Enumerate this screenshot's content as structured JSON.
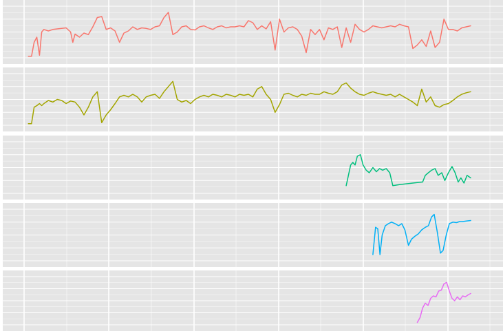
{
  "chart_data": {
    "type": "line",
    "title": "",
    "xlabel": "",
    "ylabel": "",
    "facet_layout": "stacked-vertical",
    "x_range": [
      0,
      100
    ],
    "grid": true,
    "legend": "none",
    "panel_background": "#e5e5e5",
    "grid_color": "#ffffff",
    "series": [
      {
        "color": "#f8766d",
        "ylim": [
          0,
          100
        ],
        "points": [
          [
            0.5,
            3
          ],
          [
            1.2,
            3
          ],
          [
            1.8,
            30
          ],
          [
            2.4,
            40
          ],
          [
            3,
            5
          ],
          [
            3.5,
            50
          ],
          [
            4,
            55
          ],
          [
            5,
            52
          ],
          [
            6,
            55
          ],
          [
            7,
            56
          ],
          [
            8,
            57
          ],
          [
            9,
            58
          ],
          [
            10,
            50
          ],
          [
            10.5,
            30
          ],
          [
            11,
            46
          ],
          [
            12,
            40
          ],
          [
            13,
            48
          ],
          [
            14,
            45
          ],
          [
            15,
            60
          ],
          [
            16,
            78
          ],
          [
            17,
            80
          ],
          [
            18,
            55
          ],
          [
            19,
            58
          ],
          [
            20,
            52
          ],
          [
            21,
            30
          ],
          [
            22,
            48
          ],
          [
            23,
            52
          ],
          [
            24,
            60
          ],
          [
            25,
            55
          ],
          [
            26,
            58
          ],
          [
            27,
            57
          ],
          [
            28,
            55
          ],
          [
            29,
            60
          ],
          [
            30,
            62
          ],
          [
            31,
            78
          ],
          [
            32,
            88
          ],
          [
            33,
            45
          ],
          [
            34,
            50
          ],
          [
            35,
            60
          ],
          [
            36,
            62
          ],
          [
            37,
            55
          ],
          [
            38,
            54
          ],
          [
            39,
            60
          ],
          [
            40,
            62
          ],
          [
            41,
            58
          ],
          [
            42,
            55
          ],
          [
            43,
            60
          ],
          [
            44,
            62
          ],
          [
            45,
            58
          ],
          [
            46,
            60
          ],
          [
            47,
            60
          ],
          [
            48,
            62
          ],
          [
            49,
            60
          ],
          [
            50,
            72
          ],
          [
            51,
            68
          ],
          [
            52,
            55
          ],
          [
            53,
            62
          ],
          [
            54,
            56
          ],
          [
            55,
            70
          ],
          [
            56,
            15
          ],
          [
            57,
            75
          ],
          [
            58,
            50
          ],
          [
            59,
            58
          ],
          [
            60,
            60
          ],
          [
            61,
            55
          ],
          [
            62,
            42
          ],
          [
            63,
            10
          ],
          [
            64,
            55
          ],
          [
            65,
            45
          ],
          [
            66,
            55
          ],
          [
            67,
            35
          ],
          [
            68,
            58
          ],
          [
            69,
            55
          ],
          [
            70,
            60
          ],
          [
            71,
            20
          ],
          [
            72,
            58
          ],
          [
            73,
            30
          ],
          [
            74,
            65
          ],
          [
            75,
            55
          ],
          [
            76,
            50
          ],
          [
            77,
            55
          ],
          [
            78,
            62
          ],
          [
            79,
            60
          ],
          [
            80,
            58
          ],
          [
            81,
            60
          ],
          [
            82,
            62
          ],
          [
            83,
            60
          ],
          [
            84,
            65
          ],
          [
            85,
            62
          ],
          [
            86,
            60
          ],
          [
            87,
            18
          ],
          [
            88,
            25
          ],
          [
            89,
            35
          ],
          [
            90,
            22
          ],
          [
            91,
            52
          ],
          [
            92,
            20
          ],
          [
            93,
            30
          ],
          [
            94,
            75
          ],
          [
            95,
            55
          ],
          [
            96,
            55
          ],
          [
            97,
            52
          ],
          [
            98,
            58
          ],
          [
            99,
            60
          ],
          [
            100,
            62
          ]
        ]
      },
      {
        "color": "#a3a500",
        "ylim": [
          0,
          100
        ],
        "points": [
          [
            0.5,
            3
          ],
          [
            1.2,
            3
          ],
          [
            1.8,
            35
          ],
          [
            2.4,
            38
          ],
          [
            3,
            42
          ],
          [
            3.5,
            38
          ],
          [
            4,
            42
          ],
          [
            5,
            48
          ],
          [
            6,
            45
          ],
          [
            7,
            50
          ],
          [
            8,
            48
          ],
          [
            9,
            42
          ],
          [
            10,
            47
          ],
          [
            11,
            45
          ],
          [
            12,
            35
          ],
          [
            13,
            20
          ],
          [
            14,
            35
          ],
          [
            15,
            55
          ],
          [
            16,
            65
          ],
          [
            17,
            5
          ],
          [
            18,
            20
          ],
          [
            19,
            30
          ],
          [
            20,
            42
          ],
          [
            21,
            55
          ],
          [
            22,
            58
          ],
          [
            23,
            55
          ],
          [
            24,
            60
          ],
          [
            25,
            55
          ],
          [
            26,
            45
          ],
          [
            27,
            55
          ],
          [
            28,
            58
          ],
          [
            29,
            60
          ],
          [
            30,
            52
          ],
          [
            31,
            65
          ],
          [
            32,
            75
          ],
          [
            33,
            85
          ],
          [
            34,
            50
          ],
          [
            35,
            45
          ],
          [
            36,
            48
          ],
          [
            37,
            42
          ],
          [
            38,
            50
          ],
          [
            39,
            55
          ],
          [
            40,
            58
          ],
          [
            41,
            55
          ],
          [
            42,
            60
          ],
          [
            43,
            58
          ],
          [
            44,
            55
          ],
          [
            45,
            60
          ],
          [
            46,
            58
          ],
          [
            47,
            55
          ],
          [
            48,
            60
          ],
          [
            49,
            58
          ],
          [
            50,
            60
          ],
          [
            51,
            55
          ],
          [
            52,
            70
          ],
          [
            53,
            75
          ],
          [
            54,
            60
          ],
          [
            55,
            50
          ],
          [
            56,
            25
          ],
          [
            57,
            40
          ],
          [
            58,
            60
          ],
          [
            59,
            62
          ],
          [
            60,
            58
          ],
          [
            61,
            55
          ],
          [
            62,
            60
          ],
          [
            63,
            58
          ],
          [
            64,
            62
          ],
          [
            65,
            60
          ],
          [
            66,
            60
          ],
          [
            67,
            65
          ],
          [
            68,
            62
          ],
          [
            69,
            60
          ],
          [
            70,
            65
          ],
          [
            71,
            78
          ],
          [
            72,
            82
          ],
          [
            73,
            72
          ],
          [
            74,
            65
          ],
          [
            75,
            60
          ],
          [
            76,
            58
          ],
          [
            77,
            62
          ],
          [
            78,
            65
          ],
          [
            79,
            62
          ],
          [
            80,
            60
          ],
          [
            81,
            58
          ],
          [
            82,
            60
          ],
          [
            83,
            55
          ],
          [
            84,
            60
          ],
          [
            85,
            55
          ],
          [
            86,
            50
          ],
          [
            87,
            45
          ],
          [
            88,
            38
          ],
          [
            89,
            70
          ],
          [
            90,
            45
          ],
          [
            91,
            55
          ],
          [
            92,
            38
          ],
          [
            93,
            35
          ],
          [
            94,
            40
          ],
          [
            95,
            42
          ],
          [
            96,
            48
          ],
          [
            97,
            55
          ],
          [
            98,
            60
          ],
          [
            99,
            63
          ],
          [
            100,
            65
          ]
        ]
      },
      {
        "color": "#00bf7d",
        "ylim": [
          0,
          100
        ],
        "points": [
          [
            72,
            15
          ],
          [
            73,
            55
          ],
          [
            73.5,
            60
          ],
          [
            74,
            55
          ],
          [
            74.5,
            72
          ],
          [
            75.2,
            75
          ],
          [
            75.8,
            55
          ],
          [
            76.5,
            45
          ],
          [
            77.2,
            40
          ],
          [
            78,
            50
          ],
          [
            78.8,
            42
          ],
          [
            79.5,
            48
          ],
          [
            80.2,
            45
          ],
          [
            81,
            48
          ],
          [
            81.8,
            40
          ],
          [
            82.5,
            15
          ],
          [
            84,
            17
          ],
          [
            86,
            19
          ],
          [
            88,
            21
          ],
          [
            89.2,
            22
          ],
          [
            89.8,
            35
          ],
          [
            90.5,
            40
          ],
          [
            91.2,
            45
          ],
          [
            92,
            48
          ],
          [
            92.7,
            35
          ],
          [
            93.5,
            40
          ],
          [
            94.2,
            25
          ],
          [
            95,
            40
          ],
          [
            95.8,
            52
          ],
          [
            96.5,
            40
          ],
          [
            97.2,
            22
          ],
          [
            97.8,
            30
          ],
          [
            98.5,
            20
          ],
          [
            99.2,
            35
          ],
          [
            100,
            30
          ]
        ]
      },
      {
        "color": "#00b0f6",
        "ylim": [
          0,
          100
        ],
        "points": [
          [
            78,
            12
          ],
          [
            78.6,
            65
          ],
          [
            79.1,
            62
          ],
          [
            79.6,
            12
          ],
          [
            80.1,
            50
          ],
          [
            80.8,
            68
          ],
          [
            81.5,
            72
          ],
          [
            82.2,
            75
          ],
          [
            83,
            72
          ],
          [
            83.8,
            68
          ],
          [
            84.5,
            72
          ],
          [
            85.2,
            60
          ],
          [
            86,
            30
          ],
          [
            86.7,
            42
          ],
          [
            87.5,
            48
          ],
          [
            88.2,
            52
          ],
          [
            89,
            60
          ],
          [
            89.8,
            65
          ],
          [
            90.5,
            68
          ],
          [
            91.2,
            85
          ],
          [
            91.8,
            90
          ],
          [
            92.5,
            55
          ],
          [
            93.2,
            15
          ],
          [
            93.8,
            20
          ],
          [
            94.5,
            50
          ],
          [
            95.2,
            72
          ],
          [
            96,
            75
          ],
          [
            96.8,
            74
          ],
          [
            97.5,
            76
          ],
          [
            98.2,
            76
          ],
          [
            99,
            77
          ],
          [
            100,
            78
          ]
        ]
      },
      {
        "color": "#e76bf3",
        "ylim": [
          0,
          100
        ],
        "points": [
          [
            88,
            5
          ],
          [
            88.6,
            15
          ],
          [
            89.2,
            35
          ],
          [
            89.8,
            45
          ],
          [
            90.4,
            40
          ],
          [
            91,
            55
          ],
          [
            91.6,
            60
          ],
          [
            92.2,
            58
          ],
          [
            92.8,
            70
          ],
          [
            93.4,
            72
          ],
          [
            94,
            85
          ],
          [
            94.6,
            88
          ],
          [
            95.2,
            70
          ],
          [
            95.8,
            55
          ],
          [
            96.4,
            50
          ],
          [
            97,
            58
          ],
          [
            97.6,
            52
          ],
          [
            98.2,
            60
          ],
          [
            98.8,
            58
          ],
          [
            99.4,
            62
          ],
          [
            100,
            65
          ]
        ]
      }
    ]
  }
}
